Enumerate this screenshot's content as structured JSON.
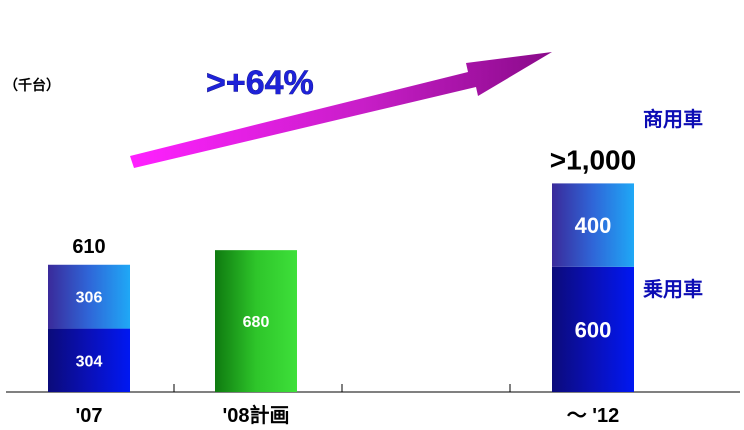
{
  "chart_data": {
    "type": "bar",
    "stacked": true,
    "unit_label": "（千台）",
    "categories": [
      "'07",
      "'08計画",
      "～ '12"
    ],
    "segments": [
      [
        {
          "label": "304",
          "value": 304,
          "role": "bottom",
          "color": "#0A12C8"
        },
        {
          "label": "306",
          "value": 306,
          "role": "top",
          "color": "#1E9CF0"
        }
      ],
      [
        {
          "label": "680",
          "value": 680,
          "role": "single",
          "color": "#22C020"
        }
      ],
      [
        {
          "label": "600",
          "value": 600,
          "role": "bottom",
          "color": "#0A12C8"
        },
        {
          "label": "400",
          "value": 400,
          "role": "top",
          "color": "#1E9CF0"
        }
      ]
    ],
    "totals": [
      "610",
      null,
      ">1,000"
    ],
    "legend_right": {
      "top": {
        "label": "商用車",
        "color": "#0C0CB4"
      },
      "bottom": {
        "label": "乗用車",
        "color": "#0C0CB4"
      }
    },
    "growth_annotation": {
      "text": ">+64%",
      "color": "#1E22D8",
      "arrow_color": "#C81EC8"
    },
    "ylim": [
      0,
      1000
    ],
    "grid": false
  }
}
